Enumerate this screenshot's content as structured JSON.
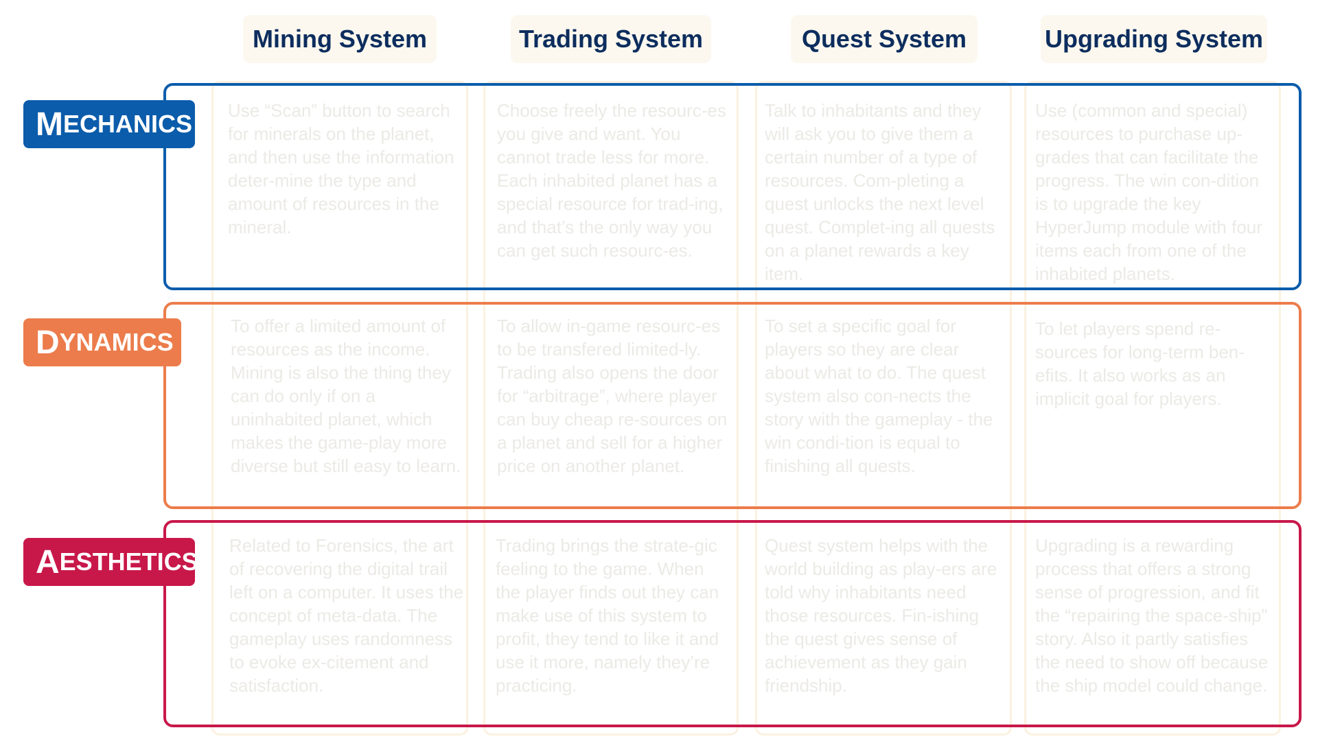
{
  "columns": [
    {
      "label": "Mining System"
    },
    {
      "label": "Trading System"
    },
    {
      "label": "Quest System"
    },
    {
      "label": "Upgrading System"
    }
  ],
  "rows": [
    {
      "label_first": "M",
      "label_rest": "ECHANICS",
      "color": "#0b5cab",
      "cells": [
        "Use “Scan” button to search for minerals on the planet, and then use the information deter-mine the type and amount of resources in the mineral.",
        "Choose freely the resourc-es you give and want. You cannot trade less for more. Each inhabited planet has a special resource for trad-ing, and that’s the only way you can get such resourc-es.",
        "Talk to inhabitants and they will ask you to give them a certain number of a type of resources. Com-pleting a quest unlocks the next level quest. Complet-ing all quests on a planet rewards a key item.",
        "Use (common and special) resources to purchase up-grades that can facilitate the progress. The win con-dition is to upgrade the key HyperJump module with four items each from one of the inhabited planets."
      ]
    },
    {
      "label_first": "D",
      "label_rest": "YNAMICS",
      "color": "#ec7c4b",
      "cells": [
        "To offer a limited amount of resources as the income. Mining is also the thing they can do only if on a uninhabited planet, which makes the game-play more diverse but still easy to learn.",
        "To allow in-game resourc-es to be transfered limited-ly. Trading also opens the door for “arbitrage”, where player can buy cheap re-sources on a planet and sell for a higher price on another planet.",
        "To set a specific goal for players so they are clear about what to do. The quest system also con-nects the story with the gameplay - the win condi-tion is equal to finishing all quests.",
        "To let players spend re-sources for long-term ben-efits. It also works as an implicit goal for players."
      ]
    },
    {
      "label_first": "A",
      "label_rest": "ESTHETICS",
      "color": "#c8184a",
      "cells": [
        "Related to Forensics, the art of recovering the digital trail left on a computer. It uses the concept of meta-data. The gameplay uses randomness to evoke ex-citement and satisfaction.",
        "Trading brings the strate-gic feeling to the game. When the player finds out they can make use of this system to profit, they tend to like it and use it more, namely they’re practicing.",
        "Quest system helps with the world building as play-ers are told why inhabitants need those resources. Fin-ishing the quest gives sense of achievement as they gain friendship.",
        "Upgrading is a rewarding process that offers a strong sense of progression, and fit the “repairing the space-ship” story. Also it partly satisfies the need to show off because the ship model could change."
      ]
    }
  ]
}
